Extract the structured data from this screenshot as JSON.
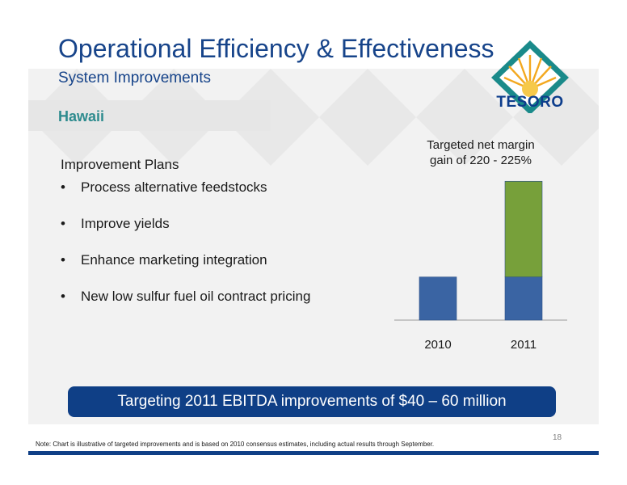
{
  "title": "Operational Efficiency & Effectiveness",
  "subtitle": "System Improvements",
  "section": "Hawaii",
  "logo": {
    "text": "TESORO",
    "icon": "tesoro-sun-logo"
  },
  "plans": {
    "heading": "Improvement Plans",
    "items": [
      "Process alternative feedstocks",
      "Improve yields",
      "Enhance marketing integration",
      "New low sulfur fuel oil contract pricing"
    ]
  },
  "chart_note": [
    "Targeted net margin",
    "gain of 220 - 225%"
  ],
  "chart_data": {
    "type": "bar",
    "stacked": true,
    "categories": [
      "2010",
      "2011"
    ],
    "series": [
      {
        "values": [
          1.0,
          1.0
        ],
        "color": "#3a64a3"
      },
      {
        "values": [
          0,
          2.22
        ],
        "color": "#77a03a"
      }
    ],
    "ylim": [
      0,
      3.3
    ],
    "legend": "none",
    "grid": false
  },
  "banner": "Targeting 2011 EBITDA improvements of $40 – 60 million",
  "page_number": "18",
  "note": "Note:  Chart is illustrative of targeted improvements and is based on 2010 consensus estimates, including actual results through September."
}
